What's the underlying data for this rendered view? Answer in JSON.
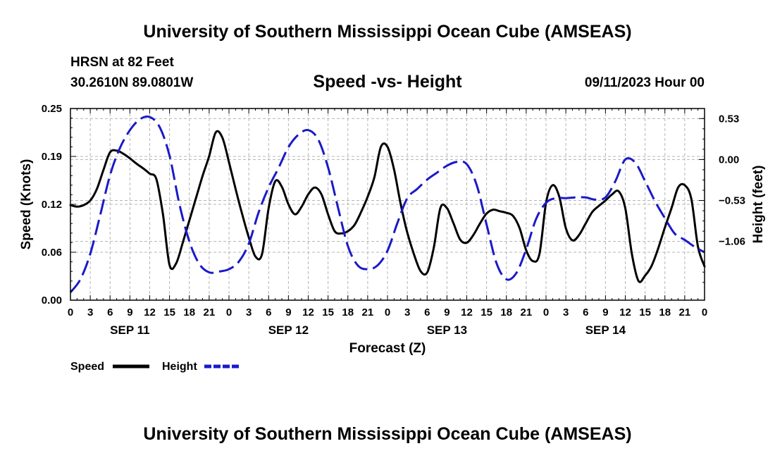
{
  "header": {
    "title": "University of Southern Mississippi Ocean Cube (AMSEAS)",
    "station": "HRSN at 82 Feet",
    "coords": "30.2610N  89.0801W",
    "subtitle": "Speed -vs- Height",
    "datetime": "09/11/2023 Hour 00"
  },
  "footer": {
    "title": "University of Southern Mississippi Ocean Cube (AMSEAS)"
  },
  "legend": {
    "speed_label": "Speed",
    "height_label": "Height"
  },
  "colors": {
    "speed": "#000000",
    "height": "#1a1ac8",
    "grid": "#b4b4b4"
  },
  "chart_data": {
    "type": "line",
    "xlabel": "Forecast (Z)",
    "ylabel_left": "Speed (Knots)",
    "ylabel_right": "Height (feet)",
    "x_unit": "forecast hour",
    "x_range": [
      0,
      96
    ],
    "x_tick_step": 3,
    "x_tick_labels": [
      "0",
      "3",
      "6",
      "9",
      "12",
      "15",
      "18",
      "21",
      "0",
      "3",
      "6",
      "9",
      "12",
      "15",
      "18",
      "21",
      "0",
      "3",
      "6",
      "9",
      "12",
      "15",
      "18",
      "21",
      "0",
      "3",
      "6",
      "9",
      "12",
      "15",
      "18",
      "21",
      "0"
    ],
    "day_labels": [
      {
        "text": "SEP 11",
        "x": 9
      },
      {
        "text": "SEP 12",
        "x": 33
      },
      {
        "text": "SEP 13",
        "x": 57
      },
      {
        "text": "SEP 14",
        "x": 81
      }
    ],
    "y_left": {
      "range": [
        0,
        0.25
      ],
      "tick_values": [
        0,
        0.0625,
        0.125,
        0.1875,
        0.25
      ],
      "tick_labels": [
        "0.00",
        "0.06",
        "0.12",
        "0.19",
        "0.25"
      ]
    },
    "y_right": {
      "range": [
        -1.82,
        0.66
      ],
      "tick_values": [
        -1.06,
        -0.53,
        0.0,
        0.53
      ],
      "tick_labels": [
        "−1.06",
        "−0.53",
        "0.00",
        "0.53"
      ]
    },
    "series": [
      {
        "name": "Speed",
        "axis": "left",
        "style": "solid",
        "x": [
          0,
          1,
          2,
          3,
          4,
          5,
          6,
          7,
          8,
          9,
          10,
          11,
          12,
          13,
          14,
          15,
          16,
          17,
          18,
          19,
          20,
          21,
          22,
          23,
          24,
          25,
          26,
          27,
          28,
          29,
          30,
          31,
          32,
          33,
          34,
          35,
          36,
          37,
          38,
          39,
          40,
          41,
          42,
          43,
          44,
          45,
          46,
          47,
          48,
          49,
          50,
          51,
          52,
          53,
          54,
          55,
          56,
          57,
          58,
          59,
          60,
          61,
          62,
          63,
          64,
          65,
          66,
          67,
          68,
          69,
          70,
          71,
          72,
          73,
          74,
          75,
          76,
          77,
          78,
          79,
          80,
          81,
          82,
          83,
          84,
          85,
          86,
          87,
          88,
          89,
          90,
          91,
          92,
          93,
          94,
          95,
          96
        ],
        "y": [
          0.124,
          0.122,
          0.124,
          0.13,
          0.145,
          0.17,
          0.193,
          0.195,
          0.191,
          0.185,
          0.178,
          0.172,
          0.165,
          0.158,
          0.112,
          0.046,
          0.048,
          0.075,
          0.104,
          0.133,
          0.162,
          0.188,
          0.219,
          0.212,
          0.18,
          0.145,
          0.112,
          0.082,
          0.057,
          0.06,
          0.12,
          0.155,
          0.148,
          0.125,
          0.112,
          0.122,
          0.138,
          0.147,
          0.138,
          0.112,
          0.09,
          0.087,
          0.09,
          0.098,
          0.115,
          0.135,
          0.16,
          0.2,
          0.2,
          0.17,
          0.125,
          0.088,
          0.06,
          0.038,
          0.036,
          0.068,
          0.12,
          0.12,
          0.1,
          0.079,
          0.075,
          0.085,
          0.1,
          0.113,
          0.118,
          0.116,
          0.114,
          0.11,
          0.094,
          0.065,
          0.051,
          0.06,
          0.127,
          0.15,
          0.135,
          0.094,
          0.078,
          0.085,
          0.1,
          0.115,
          0.123,
          0.13,
          0.138,
          0.142,
          0.12,
          0.06,
          0.025,
          0.032,
          0.045,
          0.068,
          0.095,
          0.12,
          0.147,
          0.15,
          0.132,
          0.07,
          0.044
        ]
      },
      {
        "name": "Height",
        "axis": "right",
        "style": "dashed",
        "x": [
          0,
          1.5,
          3,
          4.5,
          6,
          7.5,
          9,
          10.5,
          12,
          13.5,
          15,
          16.5,
          18,
          19.5,
          21,
          22.5,
          24,
          25.5,
          27,
          28.5,
          30,
          31.5,
          33,
          34.5,
          36,
          37.5,
          39,
          40.5,
          42,
          43.5,
          45,
          46.5,
          48,
          49.5,
          51,
          52.5,
          54,
          55.5,
          57,
          58.5,
          60,
          61.5,
          63,
          64.5,
          66,
          67.5,
          69,
          70.5,
          72,
          73.5,
          75,
          76.5,
          78,
          79.5,
          81,
          82.5,
          84,
          85.5,
          87,
          88.5,
          90,
          91.5,
          93,
          94.5,
          96
        ],
        "y": [
          -1.72,
          -1.55,
          -1.22,
          -0.72,
          -0.2,
          0.15,
          0.38,
          0.52,
          0.55,
          0.42,
          0.05,
          -0.58,
          -1.06,
          -1.35,
          -1.46,
          -1.45,
          -1.42,
          -1.32,
          -1.09,
          -0.68,
          -0.36,
          -0.11,
          0.16,
          0.32,
          0.38,
          0.26,
          -0.1,
          -0.62,
          -1.12,
          -1.37,
          -1.42,
          -1.37,
          -1.18,
          -0.82,
          -0.5,
          -0.38,
          -0.26,
          -0.17,
          -0.08,
          -0.03,
          -0.06,
          -0.33,
          -0.84,
          -1.34,
          -1.55,
          -1.47,
          -1.16,
          -0.77,
          -0.56,
          -0.5,
          -0.5,
          -0.49,
          -0.49,
          -0.52,
          -0.49,
          -0.28,
          0.0,
          -0.04,
          -0.28,
          -0.54,
          -0.76,
          -0.96,
          -1.04,
          -1.13,
          -1.2
        ]
      }
    ]
  }
}
